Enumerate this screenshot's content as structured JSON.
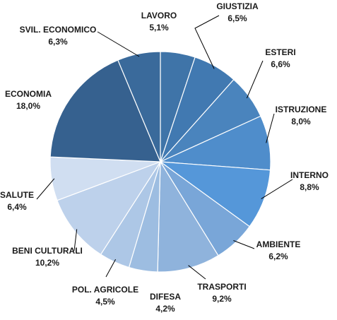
{
  "chart_data": {
    "type": "pie",
    "title": "",
    "start_angle_deg": 0,
    "direction": "clockwise",
    "slices": [
      {
        "label": "LAVORO",
        "value": 5.1,
        "value_label": "5,1%",
        "color": "#3f74a8"
      },
      {
        "label": "GIUSTIZIA",
        "value": 6.5,
        "value_label": "6,5%",
        "color": "#4179b1"
      },
      {
        "label": "ESTERI",
        "value": 6.6,
        "value_label": "6,6%",
        "color": "#4a84bd"
      },
      {
        "label": "ISTRUZIONE",
        "value": 8.0,
        "value_label": "8,0%",
        "color": "#4f8dcb"
      },
      {
        "label": "INTERNO",
        "value": 8.8,
        "value_label": "8,8%",
        "color": "#5597d9"
      },
      {
        "label": "AMBIENTE",
        "value": 6.2,
        "value_label": "6,2%",
        "color": "#79a6d8"
      },
      {
        "label": "TRASPORTI",
        "value": 9.2,
        "value_label": "9,2%",
        "color": "#8fb3dc"
      },
      {
        "label": "DIFESA",
        "value": 4.2,
        "value_label": "4,2%",
        "color": "#9dbde1"
      },
      {
        "label": "POL. AGRICOLE",
        "value": 4.5,
        "value_label": "4,5%",
        "color": "#adc7e6"
      },
      {
        "label": "BENI CULTURALI",
        "value": 10.2,
        "value_label": "10,2%",
        "color": "#bdd1eb"
      },
      {
        "label": "SALUTE",
        "value": 6.4,
        "value_label": "6,4%",
        "color": "#d0def1"
      },
      {
        "label": "ECONOMIA",
        "value": 18.0,
        "value_label": "18,0%",
        "color": "#36618f"
      },
      {
        "label": "SVIL. ECONOMICO",
        "value": 6.3,
        "value_label": "6,3%",
        "color": "#3a6a9b"
      }
    ]
  }
}
